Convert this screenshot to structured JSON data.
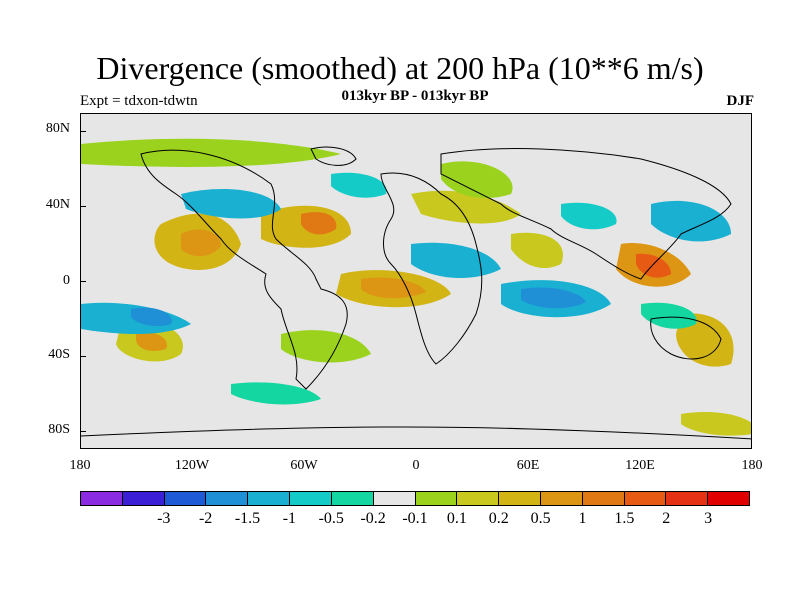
{
  "title": "Divergence (smoothed) at 200 hPa (10**6 m/s)",
  "subtitle": "013kyr BP - 013kyr BP",
  "left_label": "Expt = tdxon-tdwtn",
  "right_label": "DJF",
  "lat_labels": [
    "80N",
    "40N",
    "0",
    "40S",
    "80S"
  ],
  "lon_labels": [
    "180",
    "120W",
    "60W",
    "0",
    "60E",
    "120E",
    "180"
  ],
  "colorbar": {
    "colors": [
      "#8a2be2",
      "#3a1fd6",
      "#1f5ad6",
      "#1f8fd6",
      "#19b0d2",
      "#14cbc8",
      "#14d6a0",
      "#e6e6e6",
      "#9ad21e",
      "#c8c81e",
      "#d2b414",
      "#dc9614",
      "#e07814",
      "#e65a14",
      "#e63214",
      "#e00000"
    ],
    "labels": [
      "-3",
      "-2",
      "-1.5",
      "-1",
      "-0.5",
      "-0.2",
      "-0.1",
      "0.1",
      "0.2",
      "0.5",
      "1",
      "1.5",
      "2",
      "3"
    ]
  }
}
